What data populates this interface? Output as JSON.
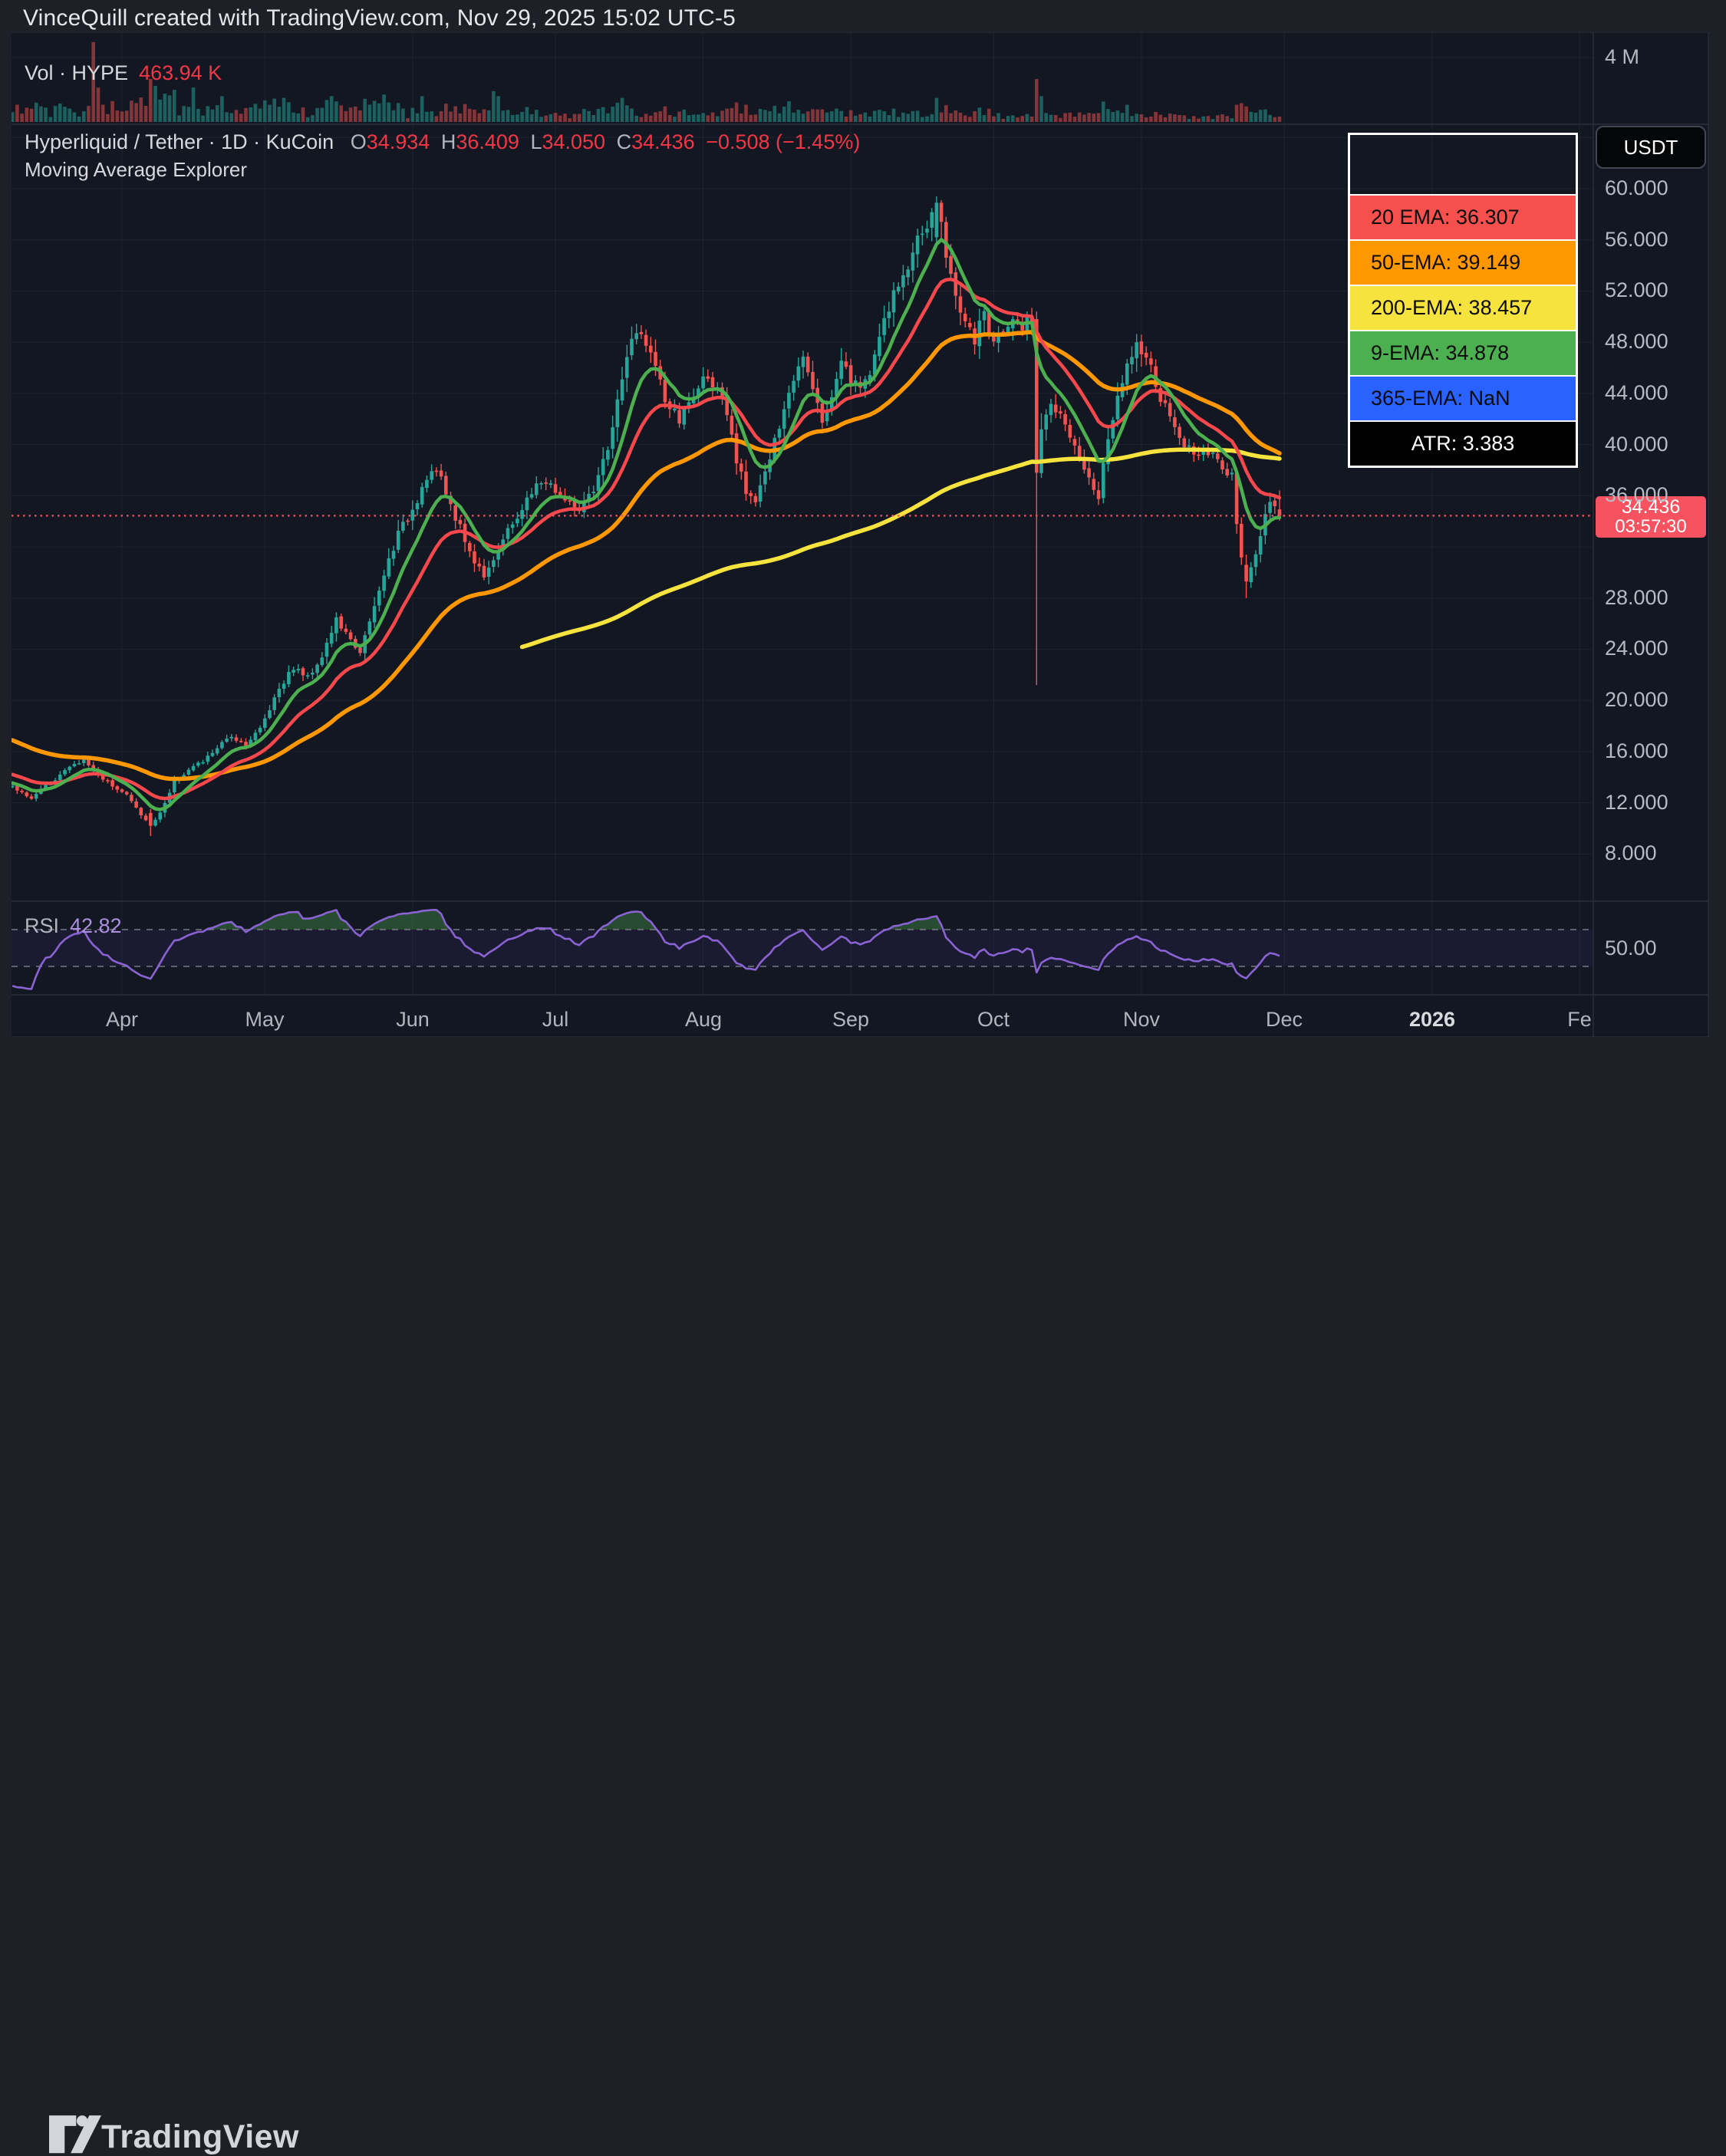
{
  "header": {
    "title": "VinceQuill created with TradingView.com, Nov 29, 2025 15:02 UTC-5"
  },
  "volume_pane": {
    "label": "Vol · HYPE",
    "value": "463.94 K",
    "axis_tick": {
      "label": "4 M",
      "value": 4000000
    }
  },
  "main_pane": {
    "title": "Hyperliquid / Tether · 1D · KuCoin",
    "ohlc": {
      "o_label": "O",
      "o": "34.934",
      "h_label": "H",
      "h": "36.409",
      "l_label": "L",
      "l": "34.050",
      "c_label": "C",
      "c": "34.436",
      "change": "−0.508 (−1.45%)"
    },
    "subtitle": "Moving Average Explorer"
  },
  "legend": {
    "rows": [
      {
        "text": "20 EMA: 36.307",
        "bg": "#f5504e",
        "fg": "#0b0b0b",
        "center": false
      },
      {
        "text": "50-EMA: 39.149",
        "bg": "#ff9800",
        "fg": "#0b0b0b",
        "center": false
      },
      {
        "text": "200-EMA: 38.457",
        "bg": "#f6e33d",
        "fg": "#0b0b0b",
        "center": false
      },
      {
        "text": "9-EMA: 34.878",
        "bg": "#4caf50",
        "fg": "#0b0b0b",
        "center": false
      },
      {
        "text": "365-EMA: NaN",
        "bg": "#2962ff",
        "fg": "#0b0b0b",
        "center": false
      },
      {
        "text": "ATR: 3.383",
        "bg": "#000000",
        "fg": "#ffffff",
        "center": true
      }
    ]
  },
  "price_axis": {
    "currency_button": "USDT",
    "ticks": [
      {
        "label": "60.000",
        "value": 60
      },
      {
        "label": "56.000",
        "value": 56
      },
      {
        "label": "52.000",
        "value": 52
      },
      {
        "label": "48.000",
        "value": 48
      },
      {
        "label": "44.000",
        "value": 44
      },
      {
        "label": "40.000",
        "value": 40
      },
      {
        "label": "36.000",
        "value": 36
      },
      {
        "label": "28.000",
        "value": 28
      },
      {
        "label": "24.000",
        "value": 24
      },
      {
        "label": "20.000",
        "value": 20
      },
      {
        "label": "16.000",
        "value": 16
      },
      {
        "label": "12.000",
        "value": 12
      },
      {
        "label": "8.000",
        "value": 8
      }
    ],
    "last_price": "34.436",
    "countdown": "03:57:30"
  },
  "rsi_pane": {
    "label": "RSI",
    "value": "42.82",
    "axis_tick": {
      "label": "50.00",
      "value": 50
    },
    "upper_band": 70,
    "lower_band": 30
  },
  "time_axis": {
    "labels": [
      {
        "text": "Apr",
        "d": 0,
        "bold": false
      },
      {
        "text": "May",
        "d": 30,
        "bold": false
      },
      {
        "text": "Jun",
        "d": 61,
        "bold": false
      },
      {
        "text": "Jul",
        "d": 91,
        "bold": false
      },
      {
        "text": "Aug",
        "d": 122,
        "bold": false
      },
      {
        "text": "Sep",
        "d": 153,
        "bold": false
      },
      {
        "text": "Oct",
        "d": 183,
        "bold": false
      },
      {
        "text": "Nov",
        "d": 214,
        "bold": false
      },
      {
        "text": "Dec",
        "d": 244,
        "bold": false
      },
      {
        "text": "2026",
        "d": 275,
        "bold": true
      },
      {
        "text": "Fe",
        "d": 306,
        "bold": false
      }
    ]
  },
  "footer": {
    "brand": "TradingView"
  },
  "chart_data": {
    "type": "candlestick",
    "symbol": "Hyperliquid / Tether",
    "ticker": "HYPE/USDT",
    "interval": "1D",
    "exchange": "KuCoin",
    "last_ohlc": {
      "open": 34.934,
      "high": 36.409,
      "low": 34.05,
      "close": 34.436,
      "change": -0.508,
      "change_pct": -1.45
    },
    "indicators": {
      "ema20": 36.307,
      "ema50": 39.149,
      "ema200": 38.457,
      "ema9": 34.878,
      "ema365": null,
      "atr": 3.383,
      "rsi": 42.82,
      "volume": "463.94 K"
    },
    "y_axis": {
      "min": 8,
      "max": 64,
      "tick_step": 4,
      "label_ticks": [
        60,
        56,
        52,
        48,
        44,
        40,
        36,
        28,
        24,
        20,
        16,
        12,
        8
      ]
    },
    "rsi_axis": {
      "bands": [
        70,
        30
      ],
      "label_tick": 50
    },
    "volume_axis": {
      "label_tick_millions": 4
    },
    "x_axis_note": "d = days since Apr 1, 2025; visible range d -23..243 (Mar 9 - Nov 29, 2025)",
    "trend_anchors_close": [
      [
        -23,
        13.2
      ],
      [
        -19,
        12.4
      ],
      [
        -15,
        13.6
      ],
      [
        -11,
        14.8
      ],
      [
        -8,
        15.3
      ],
      [
        -5,
        14.2
      ],
      [
        -2,
        13.4
      ],
      [
        1,
        12.6
      ],
      [
        3,
        11.6
      ],
      [
        5,
        10.6
      ],
      [
        6,
        10.2
      ],
      [
        7,
        10.6
      ],
      [
        9,
        12.0
      ],
      [
        11,
        13.6
      ],
      [
        14,
        14.6
      ],
      [
        17,
        15.2
      ],
      [
        20,
        16.3
      ],
      [
        23,
        17.2
      ],
      [
        26,
        16.6
      ],
      [
        29,
        17.8
      ],
      [
        31,
        19.4
      ],
      [
        33,
        21.0
      ],
      [
        36,
        22.6
      ],
      [
        39,
        21.8
      ],
      [
        42,
        23.5
      ],
      [
        45,
        26.3
      ],
      [
        48,
        24.6
      ],
      [
        50,
        23.9
      ],
      [
        52,
        26.0
      ],
      [
        54,
        28.5
      ],
      [
        56,
        31.0
      ],
      [
        58,
        33.0
      ],
      [
        60,
        34.3
      ],
      [
        62,
        35.8
      ],
      [
        64,
        37.6
      ],
      [
        66,
        38.0
      ],
      [
        68,
        36.2
      ],
      [
        71,
        33.5
      ],
      [
        74,
        30.8
      ],
      [
        76,
        29.9
      ],
      [
        79,
        31.8
      ],
      [
        82,
        33.8
      ],
      [
        85,
        35.6
      ],
      [
        88,
        37.2
      ],
      [
        90,
        36.8
      ],
      [
        93,
        35.6
      ],
      [
        96,
        34.9
      ],
      [
        99,
        36.2
      ],
      [
        102,
        39.8
      ],
      [
        104,
        43.2
      ],
      [
        106,
        47.0
      ],
      [
        108,
        48.6
      ],
      [
        110,
        48.2
      ],
      [
        112,
        46.0
      ],
      [
        114,
        43.4
      ],
      [
        117,
        41.9
      ],
      [
        120,
        43.8
      ],
      [
        123,
        45.6
      ],
      [
        125,
        44.1
      ],
      [
        127,
        42.2
      ],
      [
        129,
        38.6
      ],
      [
        131,
        36.4
      ],
      [
        133,
        35.8
      ],
      [
        136,
        38.9
      ],
      [
        139,
        42.5
      ],
      [
        141,
        45.2
      ],
      [
        143,
        47.3
      ],
      [
        145,
        44.8
      ],
      [
        147,
        41.6
      ],
      [
        149,
        43.9
      ],
      [
        151,
        46.8
      ],
      [
        153,
        45.1
      ],
      [
        155,
        44.3
      ],
      [
        157,
        45.9
      ],
      [
        159,
        48.3
      ],
      [
        161,
        50.6
      ],
      [
        163,
        52.4
      ],
      [
        165,
        54.1
      ],
      [
        167,
        55.9
      ],
      [
        169,
        57.2
      ],
      [
        171,
        58.9
      ],
      [
        172,
        57.4
      ],
      [
        173,
        54.6
      ],
      [
        175,
        51.8
      ],
      [
        177,
        49.6
      ],
      [
        179,
        48.1
      ],
      [
        181,
        50.2
      ],
      [
        183,
        47.9
      ],
      [
        185,
        48.9
      ],
      [
        187,
        50.3
      ],
      [
        189,
        49.2
      ],
      [
        191,
        50.0
      ],
      [
        192,
        37.8
      ],
      [
        193,
        41.6
      ],
      [
        195,
        43.2
      ],
      [
        197,
        42.1
      ],
      [
        199,
        40.3
      ],
      [
        201,
        38.9
      ],
      [
        203,
        37.4
      ],
      [
        205,
        36.0
      ],
      [
        207,
        40.5
      ],
      [
        209,
        43.5
      ],
      [
        211,
        46.5
      ],
      [
        213,
        48.2
      ],
      [
        215,
        46.9
      ],
      [
        217,
        44.6
      ],
      [
        219,
        42.8
      ],
      [
        221,
        41.2
      ],
      [
        223,
        40.0
      ],
      [
        225,
        39.1
      ],
      [
        227,
        39.9
      ],
      [
        229,
        39.2
      ],
      [
        231,
        38.0
      ],
      [
        233,
        37.6
      ],
      [
        234,
        33.8
      ],
      [
        235,
        31.2
      ],
      [
        236,
        29.3
      ],
      [
        237,
        30.5
      ],
      [
        239,
        32.8
      ],
      [
        241,
        35.8
      ],
      [
        242,
        35.3
      ],
      [
        243,
        34.436
      ]
    ],
    "warmup_anchors_close": [
      [
        -115,
        30
      ],
      [
        -100,
        33
      ],
      [
        -85,
        27
      ],
      [
        -70,
        21
      ],
      [
        -55,
        17
      ],
      [
        -40,
        14.8
      ],
      [
        -30,
        13.8
      ],
      [
        -24,
        13.2
      ]
    ],
    "special_candles": {
      "6": {
        "o": 11.2,
        "h": 11.5,
        "l": 9.4,
        "c": 10.2
      },
      "171": {
        "o": 56.2,
        "h": 59.4,
        "l": 55.6,
        "c": 58.9
      },
      "172": {
        "o": 58.9,
        "h": 59.1,
        "l": 55.9,
        "c": 57.4
      },
      "173": {
        "o": 57.4,
        "h": 57.8,
        "l": 53.8,
        "c": 54.6
      },
      "192": {
        "o": 49.8,
        "h": 50.4,
        "l": 21.2,
        "c": 37.8
      },
      "236": {
        "o": 30.6,
        "h": 31.4,
        "l": 28.0,
        "c": 29.3
      },
      "243": {
        "o": 34.934,
        "h": 36.409,
        "l": 34.05,
        "c": 34.436
      }
    },
    "volume_spike_fractions": {
      "-6": 0.93,
      "-5": 0.4,
      "6": 0.5,
      "7": 0.42,
      "15": 0.4,
      "21": 0.3,
      "34": 0.28,
      "44": 0.3,
      "55": 0.32,
      "63": 0.3,
      "78": 0.36,
      "79": 0.3,
      "105": 0.28,
      "140": 0.24,
      "171": 0.28,
      "192": 0.5,
      "193": 0.3,
      "211": 0.2,
      "234": 0.2,
      "236": 0.18
    },
    "last_price_line": 34.436,
    "colors": {
      "background": "#131722",
      "frame": "#1d2026",
      "grid": "rgba(240,243,250,0.055)",
      "pane_border": "#2a2e39",
      "up": "#26a69a",
      "down": "#f05350",
      "ema9": "#4caf50",
      "ema20": "#f5484d",
      "ema50": "#ff9800",
      "ema200": "#f6e33d",
      "rsi_line": "#8a63d2",
      "rsi_band": "rgba(124,77,255,0.07)",
      "rsi_overbought_fill": "rgba(76,175,80,0.35)",
      "last_price": "#f7525f",
      "text_red": "#f23645",
      "axis_text": "#b6bac3"
    }
  }
}
